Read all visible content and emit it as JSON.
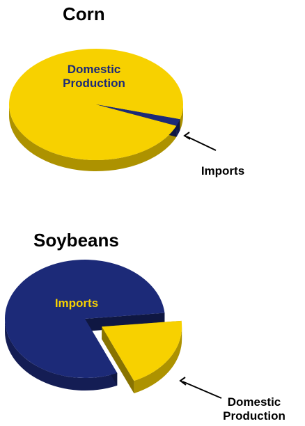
{
  "chart_data": [
    {
      "type": "pie",
      "title": "Corn",
      "categories": [
        "Domestic Production",
        "Imports"
      ],
      "values": [
        98,
        2
      ],
      "colors": [
        "#f7d100",
        "#1c2a78"
      ]
    },
    {
      "type": "pie",
      "title": "Soybeans",
      "categories": [
        "Imports",
        "Domestic Production"
      ],
      "values": [
        80,
        20
      ],
      "colors": [
        "#1c2a78",
        "#f7d100"
      ]
    }
  ]
}
